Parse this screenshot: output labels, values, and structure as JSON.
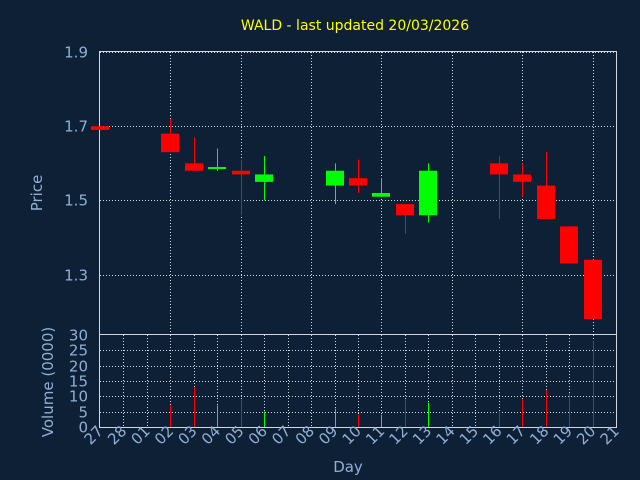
{
  "chart_data": {
    "type": "candlestick",
    "title": "WALD - last updated 20/03/2026",
    "ylabel": "Price",
    "volume_ylabel": "Volume (0000)",
    "xlabel": "Day",
    "ylim": [
      1.14,
      1.9
    ],
    "yticks": [
      "1.9",
      "1.7",
      "1.5",
      "1.3"
    ],
    "volume_ylim": [
      0,
      30
    ],
    "volume_yticks": [
      "30",
      "25",
      "20",
      "15",
      "10",
      "5",
      "0"
    ],
    "x_ticks": [
      "27",
      "28",
      "01",
      "02",
      "03",
      "04",
      "05",
      "06",
      "07",
      "08",
      "09",
      "10",
      "11",
      "12",
      "13",
      "14",
      "15",
      "16",
      "17",
      "18",
      "19",
      "20",
      "21"
    ],
    "colors": {
      "up": "#00ff00",
      "down": "#ff0000"
    },
    "candles": [
      {
        "day": "27",
        "open": 1.7,
        "high": 1.7,
        "low": 1.69,
        "close": 1.69,
        "volume": 0
      },
      {
        "day": "02",
        "open": 1.68,
        "high": 1.72,
        "low": 1.63,
        "close": 1.63,
        "volume": 7
      },
      {
        "day": "03",
        "open": 1.6,
        "high": 1.67,
        "low": 1.58,
        "close": 1.58,
        "volume": 13
      },
      {
        "day": "04",
        "open": 1.59,
        "high": 1.64,
        "low": 1.58,
        "close": 1.59,
        "volume": 7
      },
      {
        "day": "05",
        "open": 1.58,
        "high": 1.61,
        "low": 1.46,
        "close": 1.57,
        "volume": 9
      },
      {
        "day": "06",
        "open": 1.55,
        "high": 1.62,
        "low": 1.5,
        "close": 1.57,
        "volume": 5
      },
      {
        "day": "09",
        "open": 1.54,
        "high": 1.6,
        "low": 1.49,
        "close": 1.58,
        "volume": 6
      },
      {
        "day": "10",
        "open": 1.56,
        "high": 1.61,
        "low": 1.52,
        "close": 1.54,
        "volume": 4
      },
      {
        "day": "11",
        "open": 1.51,
        "high": 1.56,
        "low": 1.51,
        "close": 1.52,
        "volume": 4
      },
      {
        "day": "12",
        "open": 1.49,
        "high": 1.49,
        "low": 1.41,
        "close": 1.46,
        "volume": 9
      },
      {
        "day": "13",
        "open": 1.46,
        "high": 1.6,
        "low": 1.44,
        "close": 1.58,
        "volume": 8
      },
      {
        "day": "16",
        "open": 1.6,
        "high": 1.62,
        "low": 1.45,
        "close": 1.57,
        "volume": 5
      },
      {
        "day": "17",
        "open": 1.57,
        "high": 1.6,
        "low": 1.51,
        "close": 1.55,
        "volume": 9
      },
      {
        "day": "18",
        "open": 1.54,
        "high": 1.63,
        "low": 1.45,
        "close": 1.45,
        "volume": 12
      },
      {
        "day": "19",
        "open": 1.43,
        "high": 1.43,
        "low": 1.33,
        "close": 1.33,
        "volume": 11
      },
      {
        "day": "20",
        "open": 1.34,
        "high": 1.34,
        "low": 1.18,
        "close": 1.18,
        "volume": 28
      }
    ]
  }
}
